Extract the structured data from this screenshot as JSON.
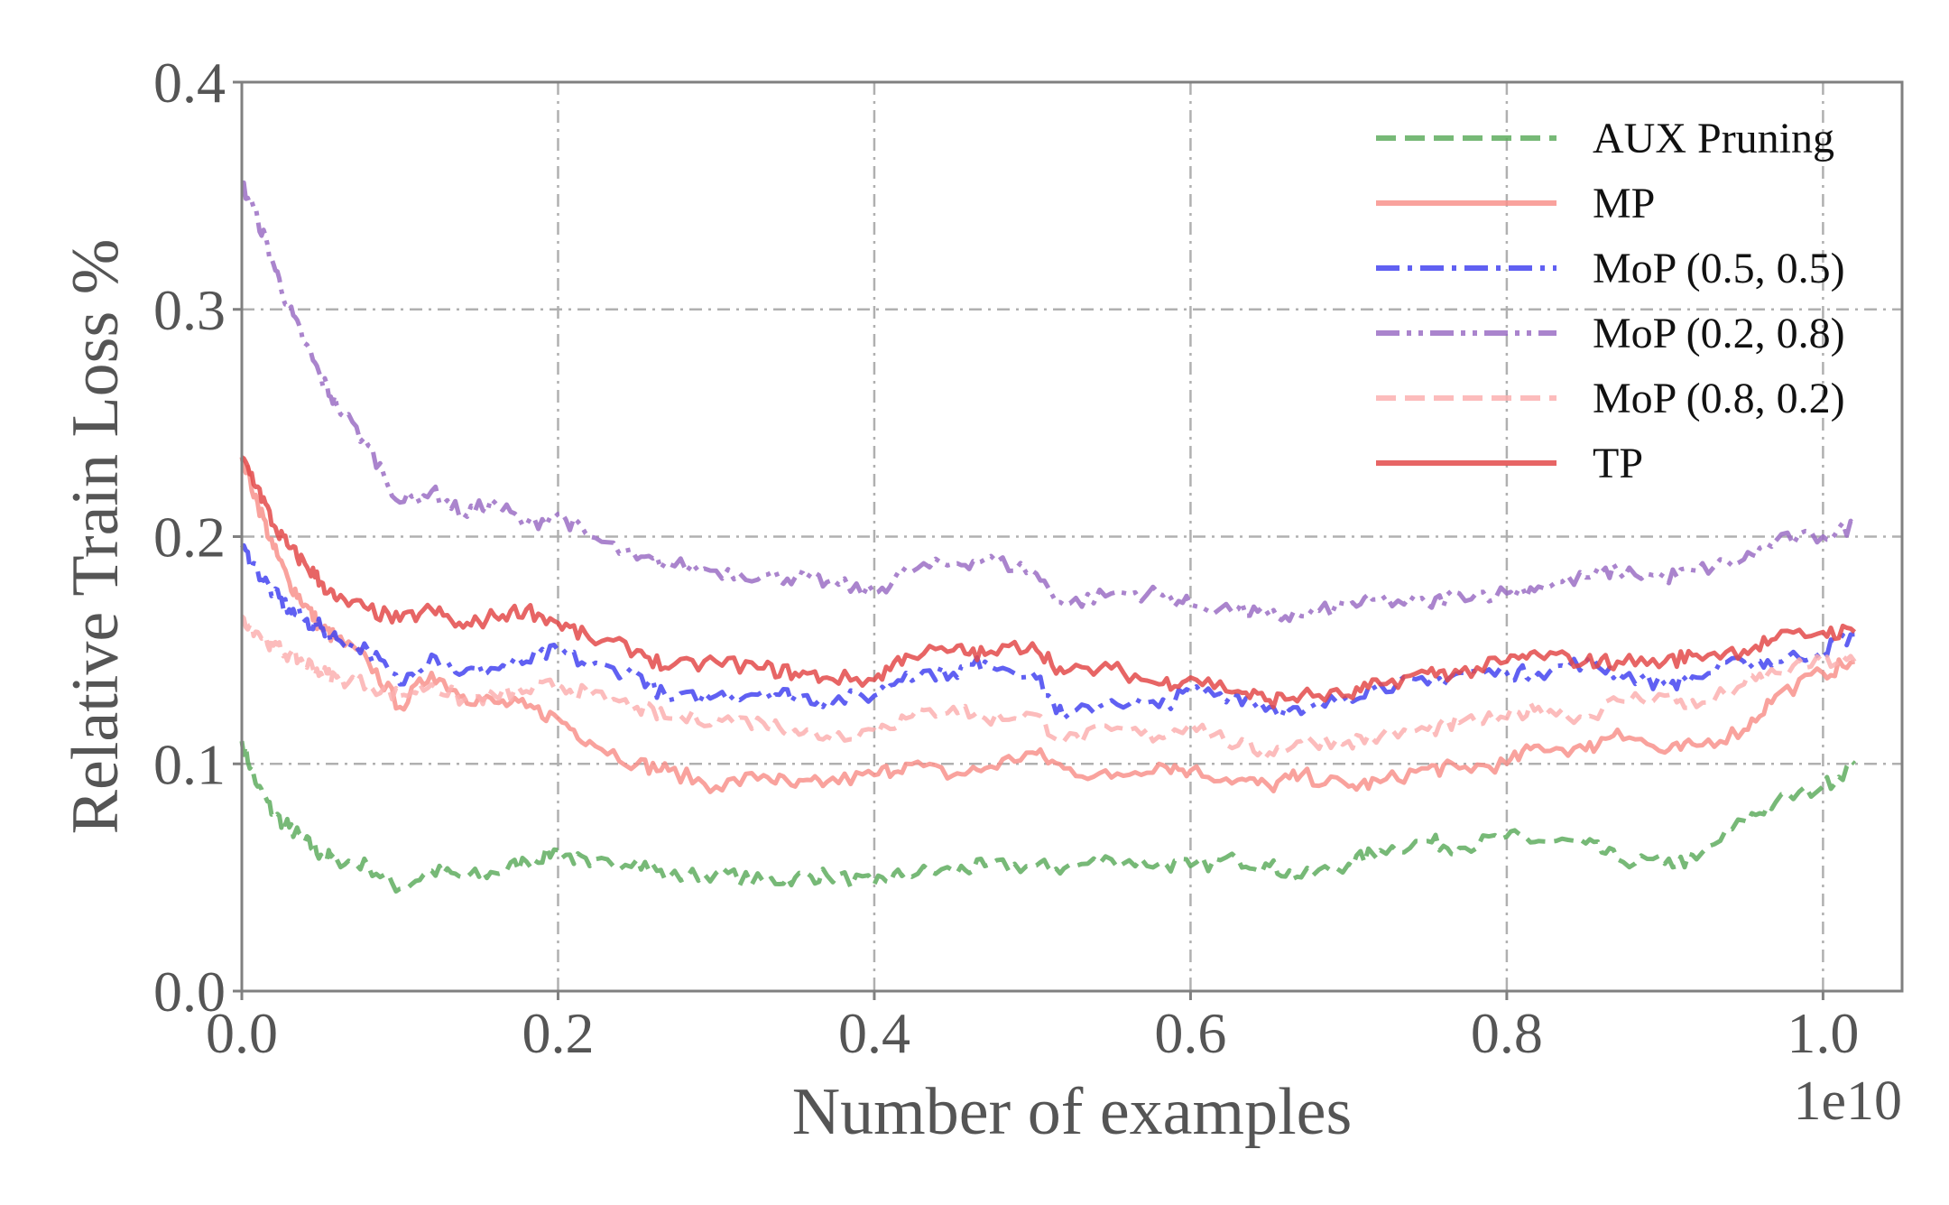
{
  "chart_data": {
    "type": "line",
    "title": "",
    "xlabel": "Number of examples",
    "ylabel": "Relative Train Loss %",
    "x_offset_label": "1e10",
    "xlim": [
      0.0,
      1.05
    ],
    "ylim": [
      0.0,
      0.4
    ],
    "x_ticks": [
      0.0,
      0.2,
      0.4,
      0.6,
      0.8,
      1.0
    ],
    "x_tick_labels": [
      "0.0",
      "0.2",
      "0.4",
      "0.6",
      "0.8",
      "1.0"
    ],
    "y_ticks": [
      0.0,
      0.1,
      0.2,
      0.3,
      0.4
    ],
    "y_tick_labels": [
      "0.0",
      "0.1",
      "0.2",
      "0.3",
      "0.4"
    ],
    "grid": true,
    "legend_position": "top-right",
    "x": [
      0.0,
      0.01,
      0.02,
      0.03,
      0.04,
      0.05,
      0.06,
      0.08,
      0.1,
      0.12,
      0.14,
      0.16,
      0.18,
      0.2,
      0.22,
      0.25,
      0.27,
      0.3,
      0.33,
      0.35,
      0.37,
      0.4,
      0.42,
      0.45,
      0.47,
      0.5,
      0.52,
      0.55,
      0.58,
      0.6,
      0.63,
      0.65,
      0.67,
      0.7,
      0.72,
      0.75,
      0.77,
      0.8,
      0.82,
      0.85,
      0.87,
      0.9,
      0.92,
      0.95,
      0.97,
      1.0,
      1.02
    ],
    "series": [
      {
        "name": "AUX Pruning",
        "color": "#5fad5f",
        "dash": "dashed",
        "values": [
          0.11,
          0.09,
          0.078,
          0.072,
          0.066,
          0.06,
          0.058,
          0.055,
          0.045,
          0.053,
          0.05,
          0.052,
          0.057,
          0.062,
          0.055,
          0.058,
          0.05,
          0.052,
          0.048,
          0.05,
          0.051,
          0.047,
          0.052,
          0.053,
          0.055,
          0.055,
          0.054,
          0.058,
          0.056,
          0.055,
          0.058,
          0.055,
          0.05,
          0.056,
          0.062,
          0.066,
          0.063,
          0.068,
          0.066,
          0.065,
          0.058,
          0.056,
          0.058,
          0.075,
          0.083,
          0.09,
          0.1
        ]
      },
      {
        "name": "MP",
        "color": "#f8928c",
        "dash": "solid",
        "values": [
          0.235,
          0.215,
          0.195,
          0.18,
          0.17,
          0.16,
          0.155,
          0.145,
          0.125,
          0.14,
          0.13,
          0.127,
          0.125,
          0.12,
          0.11,
          0.1,
          0.097,
          0.09,
          0.095,
          0.09,
          0.092,
          0.095,
          0.1,
          0.095,
          0.098,
          0.105,
          0.098,
          0.094,
          0.1,
          0.097,
          0.093,
          0.09,
          0.095,
          0.09,
          0.092,
          0.098,
          0.098,
          0.1,
          0.108,
          0.106,
          0.115,
          0.105,
          0.108,
          0.115,
          0.13,
          0.14,
          0.145
        ]
      },
      {
        "name": "MoP (0.5, 0.5)",
        "color": "#4444f0",
        "dash": "dashdot",
        "values": [
          0.195,
          0.185,
          0.175,
          0.168,
          0.163,
          0.16,
          0.155,
          0.15,
          0.135,
          0.148,
          0.14,
          0.142,
          0.145,
          0.15,
          0.143,
          0.14,
          0.128,
          0.13,
          0.132,
          0.13,
          0.128,
          0.13,
          0.14,
          0.14,
          0.145,
          0.14,
          0.12,
          0.128,
          0.125,
          0.132,
          0.13,
          0.125,
          0.122,
          0.13,
          0.135,
          0.135,
          0.14,
          0.14,
          0.14,
          0.145,
          0.14,
          0.135,
          0.138,
          0.145,
          0.145,
          0.15,
          0.157
        ]
      },
      {
        "name": "MoP (0.2, 0.8)",
        "color": "#9b6ec4",
        "dash": "dashdotdot",
        "values": [
          0.355,
          0.34,
          0.32,
          0.3,
          0.285,
          0.27,
          0.258,
          0.24,
          0.215,
          0.22,
          0.21,
          0.215,
          0.205,
          0.21,
          0.2,
          0.19,
          0.188,
          0.185,
          0.183,
          0.182,
          0.18,
          0.175,
          0.185,
          0.188,
          0.19,
          0.185,
          0.17,
          0.175,
          0.175,
          0.17,
          0.168,
          0.165,
          0.165,
          0.17,
          0.172,
          0.17,
          0.175,
          0.175,
          0.178,
          0.182,
          0.185,
          0.182,
          0.185,
          0.19,
          0.198,
          0.2,
          0.205
        ]
      },
      {
        "name": "MoP (0.8, 0.2)",
        "color": "#fbb0b0",
        "dash": "dashed",
        "values": [
          0.165,
          0.158,
          0.152,
          0.148,
          0.145,
          0.14,
          0.138,
          0.135,
          0.13,
          0.135,
          0.128,
          0.13,
          0.132,
          0.135,
          0.13,
          0.125,
          0.12,
          0.12,
          0.118,
          0.115,
          0.112,
          0.115,
          0.12,
          0.125,
          0.12,
          0.122,
          0.11,
          0.115,
          0.112,
          0.118,
          0.108,
          0.105,
          0.11,
          0.11,
          0.112,
          0.115,
          0.118,
          0.12,
          0.125,
          0.12,
          0.128,
          0.13,
          0.125,
          0.135,
          0.14,
          0.145,
          0.145
        ]
      },
      {
        "name": "TP",
        "color": "#e34a4a",
        "dash": "solid",
        "values": [
          0.235,
          0.222,
          0.205,
          0.195,
          0.188,
          0.18,
          0.172,
          0.168,
          0.163,
          0.168,
          0.16,
          0.165,
          0.168,
          0.162,
          0.155,
          0.15,
          0.142,
          0.145,
          0.142,
          0.14,
          0.138,
          0.137,
          0.148,
          0.15,
          0.148,
          0.153,
          0.14,
          0.142,
          0.135,
          0.138,
          0.132,
          0.128,
          0.13,
          0.13,
          0.135,
          0.14,
          0.14,
          0.145,
          0.148,
          0.145,
          0.145,
          0.145,
          0.148,
          0.15,
          0.155,
          0.158,
          0.158
        ]
      }
    ]
  }
}
